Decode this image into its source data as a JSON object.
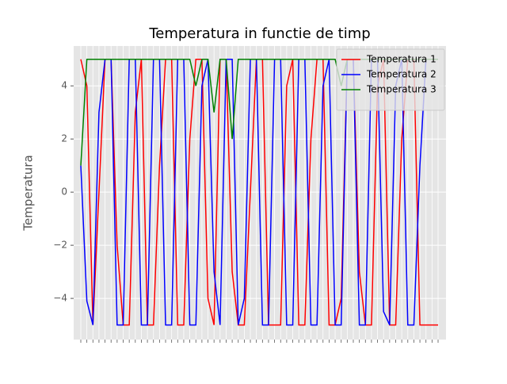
{
  "chart_data": {
    "type": "line",
    "title": "Temperatura in functie de timp",
    "y_label": "Temperatura",
    "categories": [
      null,
      null,
      null,
      null,
      null,
      null,
      null,
      null,
      null,
      null,
      null,
      null,
      null,
      null,
      null,
      null,
      null,
      null,
      null,
      null,
      null,
      null,
      null,
      null,
      null,
      null,
      null,
      null,
      null,
      null,
      null,
      null,
      null,
      null,
      null,
      null,
      null,
      null,
      null,
      null,
      null,
      null,
      null,
      null,
      null,
      null,
      null,
      null,
      null,
      null,
      null,
      null,
      null,
      null,
      null,
      null,
      null,
      null,
      null,
      null
    ],
    "series": [
      {
        "name": "Temperatura 1",
        "color": "#ff0000",
        "values": [
          5,
          4,
          -5,
          0,
          5,
          5,
          -2,
          -5,
          -5,
          3,
          5,
          -5,
          -5,
          1,
          5,
          5,
          -5,
          -5,
          2,
          5,
          5,
          -4,
          -5,
          5,
          5,
          -3,
          -5,
          -5,
          0,
          5,
          5,
          -5,
          -5,
          -5,
          4,
          5,
          -5,
          -5,
          2,
          5,
          5,
          -5,
          -5,
          -4,
          5,
          5,
          -3,
          -5,
          -5,
          4,
          5,
          -5,
          -5,
          2,
          5,
          5,
          -5,
          -5,
          -5,
          -5
        ]
      },
      {
        "name": "Temperatura 2",
        "color": "#0000ff",
        "values": [
          1,
          -4.1,
          -5,
          3,
          5,
          5,
          -5,
          -5,
          5,
          5,
          -5,
          -5,
          5,
          5,
          -5,
          -5,
          5,
          5,
          -5,
          -5,
          4,
          5,
          -3,
          -5,
          5,
          5,
          -5,
          -4,
          5,
          5,
          -5,
          -5,
          5,
          5,
          -5,
          -5,
          5,
          5,
          -5,
          -5,
          4,
          5,
          -5,
          -5,
          5,
          5,
          -5,
          -5,
          5,
          5,
          -4.5,
          -5,
          4,
          5,
          -5,
          -5,
          1,
          5,
          5,
          5
        ]
      },
      {
        "name": "Temperatura 3",
        "color": "#008000",
        "values": [
          1,
          5,
          5,
          5,
          5,
          5,
          5,
          5,
          5,
          5,
          5,
          5,
          5,
          5,
          5,
          5,
          5,
          5,
          5,
          4,
          5,
          5,
          3,
          5,
          5,
          2,
          5,
          5,
          5,
          5,
          5,
          5,
          5,
          5,
          5,
          5,
          5,
          5,
          5,
          5,
          5,
          5,
          5,
          4,
          5,
          5,
          5,
          5,
          5,
          5,
          5,
          5,
          5,
          5,
          5,
          5,
          5,
          5,
          5,
          5
        ]
      }
    ],
    "ylim": [
      -5.55,
      5.5
    ],
    "yticks": [
      {
        "value": -4,
        "label": "−4"
      },
      {
        "value": -2,
        "label": "−2"
      },
      0,
      2,
      4
    ],
    "grid": true,
    "legend": "upper-right"
  }
}
